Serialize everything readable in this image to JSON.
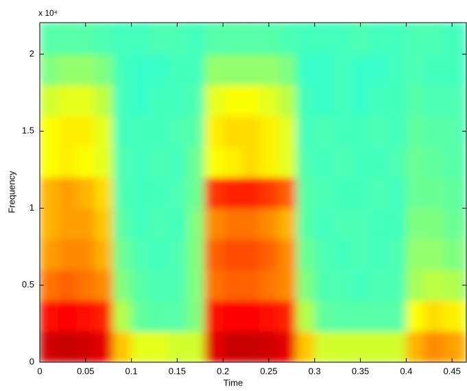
{
  "chart_data": {
    "type": "spectrogram",
    "xlabel": "Time",
    "ylabel": "Frequency",
    "y_scale_label": "x 10⁴",
    "xlim": [
      0,
      0.4656
    ],
    "ylim": [
      0,
      22050
    ],
    "xticks": [
      0,
      0.05,
      0.1,
      0.15,
      0.2,
      0.25,
      0.3,
      0.35,
      0.4,
      0.45
    ],
    "yticks": [
      0,
      {
        "value": 5000,
        "label": "0.5"
      },
      {
        "value": 10000,
        "label": "1"
      },
      {
        "value": 15000,
        "label": "1.5"
      },
      {
        "value": 20000,
        "label": "2"
      }
    ],
    "colormap": "jet",
    "x": [
      0,
      0.02,
      0.04,
      0.06,
      0.08,
      0.1,
      0.12,
      0.14,
      0.16,
      0.18,
      0.2,
      0.22,
      0.24,
      0.26,
      0.28,
      0.3,
      0.32,
      0.34,
      0.36,
      0.38,
      0.4,
      0.42,
      0.44,
      0.46,
      0.4656
    ],
    "y": [
      0,
      2000,
      4000,
      6000,
      8000,
      10000,
      12000,
      14000,
      16000,
      18000,
      20000,
      22000,
      22050
    ],
    "values": [
      [
        0.92,
        0.93,
        0.92,
        0.9,
        0.68,
        0.6,
        0.6,
        0.58,
        0.58,
        0.9,
        0.93,
        0.93,
        0.92,
        0.9,
        0.68,
        0.58,
        0.58,
        0.58,
        0.58,
        0.58,
        0.7,
        0.74,
        0.72,
        0.7
      ],
      [
        0.86,
        0.87,
        0.86,
        0.84,
        0.55,
        0.47,
        0.46,
        0.46,
        0.5,
        0.86,
        0.87,
        0.87,
        0.86,
        0.84,
        0.55,
        0.47,
        0.46,
        0.46,
        0.46,
        0.46,
        0.62,
        0.66,
        0.64,
        0.6
      ],
      [
        0.76,
        0.78,
        0.76,
        0.74,
        0.5,
        0.46,
        0.45,
        0.45,
        0.5,
        0.76,
        0.78,
        0.78,
        0.76,
        0.74,
        0.5,
        0.45,
        0.45,
        0.44,
        0.45,
        0.45,
        0.54,
        0.56,
        0.55,
        0.52
      ],
      [
        0.72,
        0.74,
        0.74,
        0.7,
        0.48,
        0.45,
        0.44,
        0.45,
        0.5,
        0.78,
        0.8,
        0.8,
        0.78,
        0.74,
        0.48,
        0.45,
        0.44,
        0.45,
        0.44,
        0.45,
        0.52,
        0.52,
        0.5,
        0.5
      ],
      [
        0.7,
        0.72,
        0.72,
        0.68,
        0.46,
        0.44,
        0.45,
        0.44,
        0.5,
        0.74,
        0.76,
        0.76,
        0.74,
        0.7,
        0.46,
        0.44,
        0.45,
        0.45,
        0.44,
        0.44,
        0.5,
        0.5,
        0.48,
        0.48
      ],
      [
        0.7,
        0.72,
        0.7,
        0.66,
        0.45,
        0.44,
        0.44,
        0.45,
        0.48,
        0.82,
        0.84,
        0.84,
        0.82,
        0.78,
        0.46,
        0.45,
        0.44,
        0.44,
        0.45,
        0.44,
        0.48,
        0.48,
        0.47,
        0.46
      ],
      [
        0.62,
        0.64,
        0.62,
        0.6,
        0.45,
        0.44,
        0.45,
        0.44,
        0.48,
        0.62,
        0.64,
        0.66,
        0.64,
        0.6,
        0.45,
        0.44,
        0.45,
        0.44,
        0.44,
        0.45,
        0.48,
        0.47,
        0.46,
        0.46
      ],
      [
        0.62,
        0.64,
        0.64,
        0.6,
        0.44,
        0.44,
        0.44,
        0.45,
        0.46,
        0.64,
        0.66,
        0.66,
        0.64,
        0.6,
        0.44,
        0.45,
        0.44,
        0.44,
        0.45,
        0.44,
        0.47,
        0.46,
        0.46,
        0.45
      ],
      [
        0.58,
        0.6,
        0.6,
        0.56,
        0.44,
        0.43,
        0.44,
        0.44,
        0.45,
        0.6,
        0.62,
        0.62,
        0.6,
        0.56,
        0.44,
        0.43,
        0.44,
        0.43,
        0.44,
        0.44,
        0.46,
        0.45,
        0.45,
        0.45
      ],
      [
        0.5,
        0.52,
        0.52,
        0.5,
        0.44,
        0.43,
        0.43,
        0.44,
        0.44,
        0.52,
        0.52,
        0.52,
        0.52,
        0.5,
        0.43,
        0.43,
        0.44,
        0.43,
        0.43,
        0.44,
        0.45,
        0.44,
        0.44,
        0.44
      ],
      [
        0.46,
        0.46,
        0.46,
        0.45,
        0.44,
        0.44,
        0.45,
        0.45,
        0.44,
        0.46,
        0.46,
        0.46,
        0.46,
        0.45,
        0.44,
        0.44,
        0.44,
        0.45,
        0.44,
        0.44,
        0.45,
        0.45,
        0.44,
        0.44
      ],
      [
        0.45,
        0.46,
        0.45,
        0.45,
        0.44,
        0.44,
        0.45,
        0.44,
        0.44,
        0.45,
        0.46,
        0.45,
        0.45,
        0.45,
        0.44,
        0.44,
        0.44,
        0.45,
        0.44,
        0.44,
        0.45,
        0.44,
        0.44,
        0.44
      ]
    ]
  }
}
